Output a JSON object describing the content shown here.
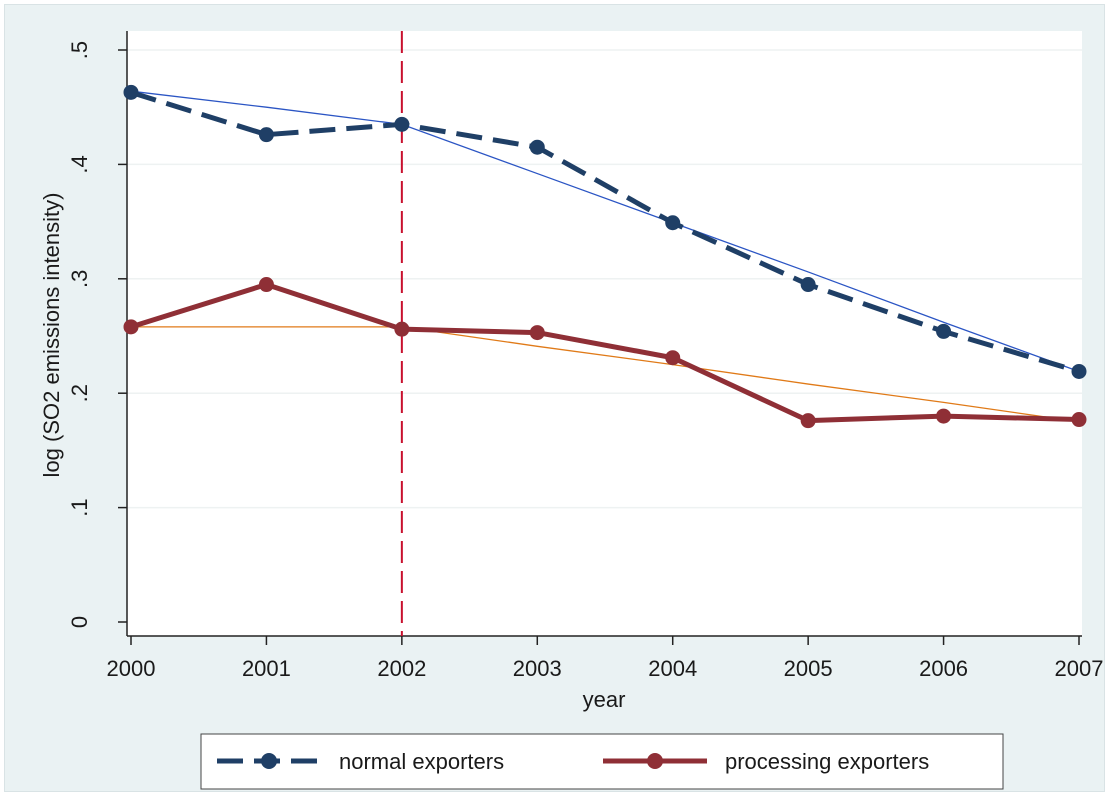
{
  "chart_data": {
    "type": "line",
    "title": "",
    "xlabel": "year",
    "ylabel": "log (SO2 emissions intensity)",
    "x": [
      2000,
      2001,
      2002,
      2003,
      2004,
      2005,
      2006,
      2007
    ],
    "x_tick_labels": [
      "2000",
      "2001",
      "2002",
      "2003",
      "2004",
      "2005",
      "2006",
      "2007"
    ],
    "y_ticks": [
      0,
      0.1,
      0.2,
      0.3,
      0.4,
      0.5
    ],
    "y_tick_labels": [
      "0",
      ".1",
      ".2",
      ".3",
      ".4",
      ".5"
    ],
    "xlim": [
      2000,
      2007
    ],
    "ylim": [
      0,
      0.5
    ],
    "grid": true,
    "legend_position": "bottom",
    "vertical_reference_line": {
      "x": 2002,
      "color": "#c8102e",
      "style": "dashed"
    },
    "series": [
      {
        "name": "normal exporters",
        "color": "#1f3f66",
        "style": "dashed",
        "marker": "circle",
        "values": [
          0.463,
          0.426,
          0.435,
          0.415,
          0.349,
          0.295,
          0.254,
          0.219
        ],
        "fit_values": [
          0.464,
          0.45,
          0.435,
          0.392,
          0.349,
          0.306,
          0.262,
          0.219
        ],
        "fit_color": "#2b55c4"
      },
      {
        "name": "processing exporters",
        "color": "#8f2f36",
        "style": "solid",
        "marker": "circle",
        "values": [
          0.258,
          0.295,
          0.256,
          0.253,
          0.231,
          0.176,
          0.18,
          0.177
        ],
        "fit_values": [
          0.258,
          0.258,
          0.258,
          0.241,
          0.225,
          0.208,
          0.192,
          0.175
        ],
        "fit_color": "#e07a18"
      }
    ]
  }
}
